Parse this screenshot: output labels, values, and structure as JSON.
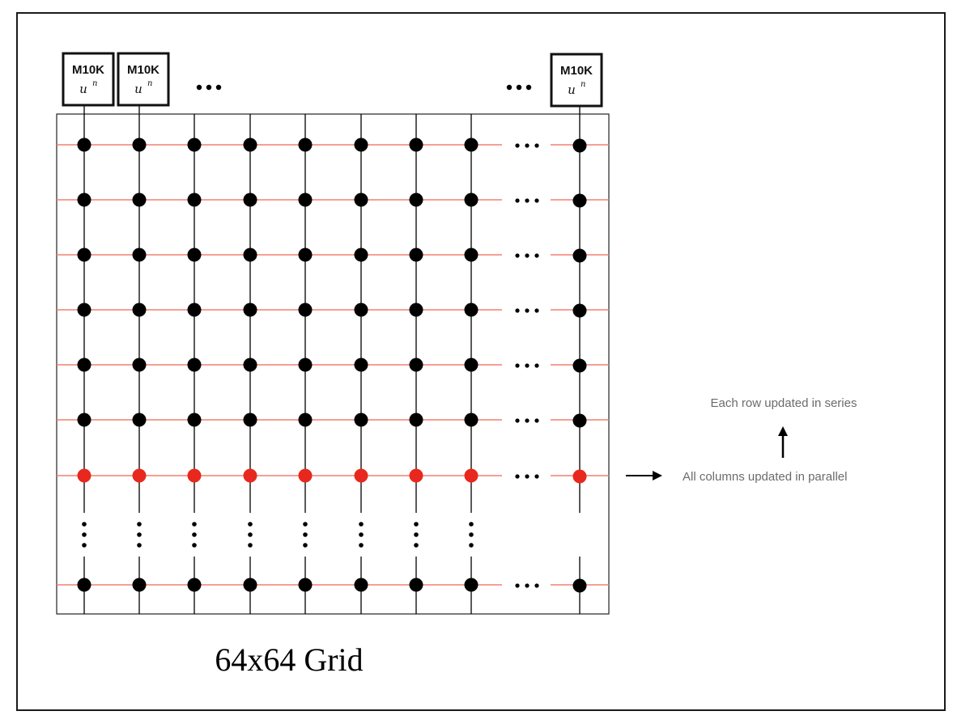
{
  "memory_block": {
    "label": "M10K",
    "var": "u",
    "superscript": "n"
  },
  "ellipsis": "•••",
  "caption": "64x64 Grid",
  "notes": {
    "series": "Each row updated in series",
    "parallel": "All columns updated in parallel"
  },
  "colors": {
    "node": "#000000",
    "active_node": "#e8281e",
    "row_line": "#f08070",
    "column_line": "#000000",
    "border": "#1a1a1a",
    "note_text": "#6b6b6b"
  },
  "grid": {
    "visible_columns": 9,
    "visible_rows": 8,
    "active_row_index": 6,
    "icons": [
      "ellipsis-icon",
      "vertical-ellipsis-icon",
      "arrow-right-icon",
      "arrow-up-icon"
    ]
  }
}
